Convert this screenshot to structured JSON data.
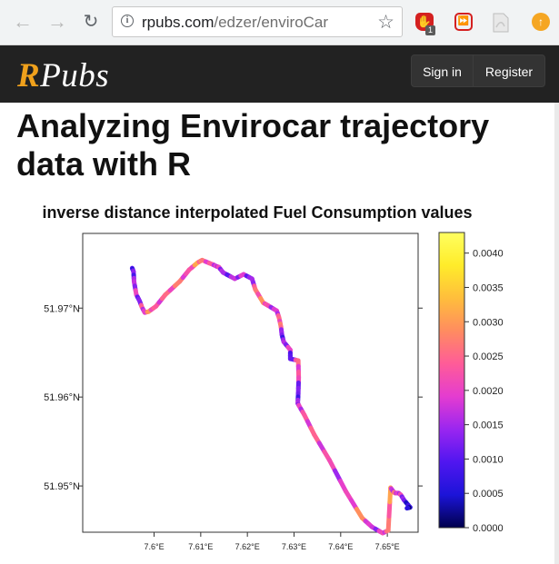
{
  "browser": {
    "url_host": "rpubs.com",
    "url_path": "/edzer/enviroCar",
    "ext_badge": "1"
  },
  "site": {
    "logo_r": "R",
    "logo_rest": "Pubs",
    "sign_in": "Sign in",
    "register": "Register"
  },
  "page": {
    "title": "Analyzing Envirocar trajectory data with R"
  },
  "chart_data": {
    "type": "line",
    "title": "inverse distance interpolated Fuel Consumption values",
    "x_ticks": [
      "7.6°E",
      "7.61°E",
      "7.62°E",
      "7.63°E",
      "7.64°E",
      "7.65°E"
    ],
    "y_ticks": [
      "51.97°N",
      "51.96°N",
      "51.95°N"
    ],
    "xlim": [
      7.5847,
      7.6566
    ],
    "ylim": [
      51.9448,
      51.9784
    ],
    "colorbar": {
      "range": [
        0,
        0.0043
      ],
      "ticks": [
        "0.0000",
        "0.0005",
        "0.0010",
        "0.0015",
        "0.0020",
        "0.0025",
        "0.0030",
        "0.0035",
        "0.0040"
      ],
      "colors": [
        "#00004c",
        "#1c14d8",
        "#5016f0",
        "#9a26f0",
        "#e43cd0",
        "#ff5c98",
        "#ff8c60",
        "#ffbe3c",
        "#ffec2a",
        "#ffff60"
      ]
    },
    "trajectory": {
      "lon": [
        7.5953,
        7.5956,
        7.5957,
        7.5962,
        7.5969,
        7.5974,
        7.598,
        7.5988,
        7.6004,
        7.6024,
        7.6055,
        7.6075,
        7.6093,
        7.6103,
        7.6126,
        7.6134,
        7.6139,
        7.6148,
        7.6173,
        7.6192,
        7.621,
        7.6217,
        7.6234,
        7.6244,
        7.6263,
        7.6268,
        7.6272,
        7.6274,
        7.6278,
        7.6292,
        7.6292,
        7.6309,
        7.631,
        7.6309,
        7.6308,
        7.6311,
        7.6322,
        7.6343,
        7.6376,
        7.6411,
        7.6446,
        7.6467,
        7.649,
        7.6502,
        7.6507,
        7.6511,
        7.6516,
        7.6524,
        7.6529,
        7.6536,
        7.6549,
        7.6542
      ],
      "lat": [
        51.9745,
        51.9741,
        51.973,
        51.9715,
        51.9708,
        51.9701,
        51.9695,
        51.9696,
        51.9702,
        51.9715,
        51.973,
        51.9743,
        51.9751,
        51.9754,
        51.9749,
        51.9747,
        51.9746,
        51.974,
        51.9733,
        51.9738,
        51.9733,
        51.9721,
        51.9706,
        51.9703,
        51.9697,
        51.9689,
        51.9679,
        51.967,
        51.9662,
        51.9653,
        51.9643,
        51.9641,
        51.9622,
        51.9604,
        51.9593,
        51.959,
        51.958,
        51.9558,
        51.9529,
        51.9494,
        51.9464,
        51.9454,
        51.9447,
        51.945,
        51.9498,
        51.9495,
        51.9492,
        51.9492,
        51.949,
        51.9484,
        51.9476,
        51.9475
      ],
      "fuel": [
        0.0005,
        0.0009,
        0.0012,
        0.0018,
        0.0007,
        0.0022,
        0.0014,
        0.0027,
        0.0019,
        0.0021,
        0.0024,
        0.0017,
        0.0029,
        0.0023,
        0.0019,
        0.0015,
        0.0018,
        0.0011,
        0.0013,
        0.0016,
        0.0009,
        0.0022,
        0.0026,
        0.0018,
        0.0014,
        0.0021,
        0.0024,
        0.0008,
        0.0011,
        0.0018,
        0.0004,
        0.0022,
        0.0019,
        0.0007,
        0.0012,
        0.0016,
        0.0019,
        0.0021,
        0.0018,
        0.0015,
        0.0027,
        0.0013,
        0.0017,
        0.0022,
        0.0028,
        0.0011,
        0.0024,
        0.0014,
        0.0019,
        0.0009,
        0.0003,
        0.0002
      ]
    }
  }
}
